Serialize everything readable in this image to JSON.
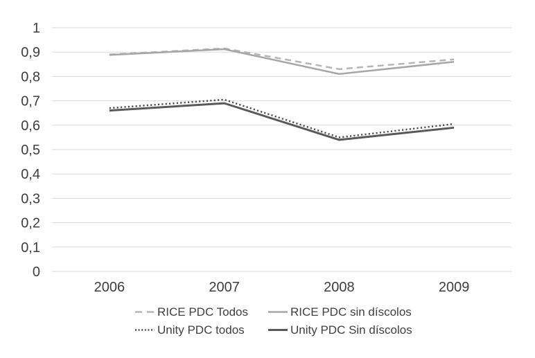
{
  "chart_data": {
    "type": "line",
    "title": "",
    "xlabel": "",
    "ylabel": "",
    "categories": [
      "2006",
      "2007",
      "2008",
      "2009"
    ],
    "series": [
      {
        "name": "RICE PDC Todos",
        "values": [
          0.89,
          0.915,
          0.83,
          0.87
        ],
        "color": "#b5b5b5",
        "line_style": "dashed",
        "stroke_width": 2.5
      },
      {
        "name": "RICE PDC sin díscolos",
        "values": [
          0.888,
          0.912,
          0.81,
          0.86
        ],
        "color": "#a6a6a6",
        "line_style": "solid",
        "stroke_width": 2.5
      },
      {
        "name": "Unity PDC todos",
        "values": [
          0.67,
          0.705,
          0.55,
          0.605
        ],
        "color": "#4f4f4f",
        "line_style": "dotted",
        "stroke_width": 2.5
      },
      {
        "name": "Unity PDC Sin díscolos",
        "values": [
          0.66,
          0.69,
          0.54,
          0.59
        ],
        "color": "#595959",
        "line_style": "solid",
        "stroke_width": 3
      }
    ],
    "ylim": [
      0,
      1
    ],
    "ytick_step": 0.1,
    "ytick_labels": [
      "0",
      "0,1",
      "0,2",
      "0,3",
      "0,4",
      "0,5",
      "0,6",
      "0,7",
      "0,8",
      "0,9",
      "1"
    ],
    "grid": true,
    "gridline_color": "#d9d9d9",
    "axis_text_color": "#3d3d3d",
    "legend_position": "bottom",
    "background_color": "#ffffff"
  }
}
